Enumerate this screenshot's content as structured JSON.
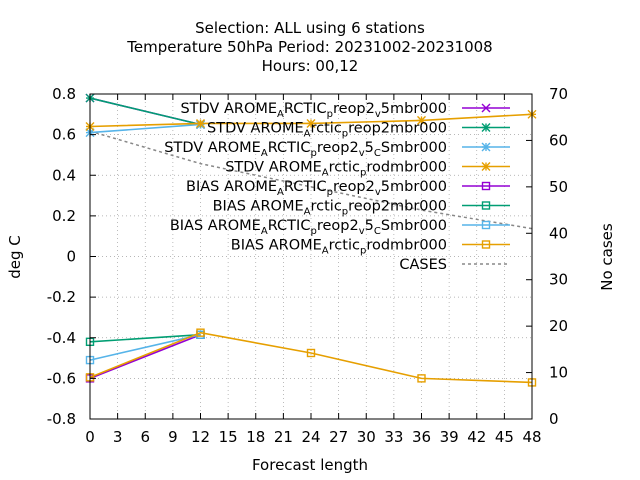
{
  "chart_data": {
    "type": "line",
    "title_lines": [
      "Selection: ALL using     6 stations",
      "Temperature 50hPa   Period: 20231002-20231008",
      "Hours:  00,12"
    ],
    "xlabel": "Forecast length",
    "ylabel": "deg C",
    "y2label": "No cases",
    "xlim": [
      0,
      48
    ],
    "ylim": [
      -0.8,
      0.8
    ],
    "y2lim": [
      0,
      70
    ],
    "xticks": [
      0,
      3,
      6,
      9,
      12,
      15,
      18,
      21,
      24,
      27,
      30,
      33,
      36,
      39,
      42,
      45,
      48
    ],
    "yticks": [
      -0.8,
      -0.6,
      -0.4,
      -0.2,
      0,
      0.2,
      0.4,
      0.6,
      0.8
    ],
    "ytick_labels": [
      "-0.8",
      "-0.6",
      "-0.4",
      "-0.2",
      "0",
      "0.2",
      "0.4",
      "0.6",
      "0.8"
    ],
    "y2ticks": [
      0,
      10,
      20,
      30,
      40,
      50,
      60,
      70
    ],
    "grid": true,
    "legend_position": "top-right",
    "series": [
      {
        "name": "STDV AROME_ARCTIC_preop2_v_5mbr000",
        "label_parts": [
          [
            "STDV AROME",
            ""
          ],
          [
            "A",
            "sub"
          ],
          [
            "RCTIC",
            ""
          ],
          [
            "p",
            "sub"
          ],
          [
            "reop2",
            ""
          ],
          [
            "v",
            "sub"
          ],
          [
            "5mbr000",
            ""
          ]
        ],
        "axis": "y1",
        "marker": "x",
        "color": "#9400d3",
        "x": [
          0,
          12
        ],
        "y": [
          0.78,
          0.65
        ]
      },
      {
        "name": "STDV AROME_Arctic_preop2mbr000",
        "label_parts": [
          [
            "STDV AROME",
            ""
          ],
          [
            "A",
            "sub"
          ],
          [
            "rctic",
            ""
          ],
          [
            "p",
            "sub"
          ],
          [
            "reop2mbr000",
            ""
          ]
        ],
        "axis": "y1",
        "marker": "star",
        "color": "#009e73",
        "x": [
          0,
          12
        ],
        "y": [
          0.78,
          0.65
        ]
      },
      {
        "name": "STDV AROME_ARCTIC_preop2_v_5_CSmbr000",
        "label_parts": [
          [
            "STDV AROME",
            ""
          ],
          [
            "A",
            "sub"
          ],
          [
            "RCTIC",
            ""
          ],
          [
            "p",
            "sub"
          ],
          [
            "reop2",
            ""
          ],
          [
            "v",
            "sub"
          ],
          [
            "5",
            ""
          ],
          [
            "C",
            "sub"
          ],
          [
            "Smbr000",
            ""
          ]
        ],
        "axis": "y1",
        "marker": "star",
        "color": "#56b4e9",
        "x": [
          0,
          12
        ],
        "y": [
          0.61,
          0.65
        ]
      },
      {
        "name": "STDV AROME_Arctic_prodmbr000",
        "label_parts": [
          [
            "STDV AROME",
            ""
          ],
          [
            "A",
            "sub"
          ],
          [
            "rctic",
            ""
          ],
          [
            "p",
            "sub"
          ],
          [
            "rodmbr000",
            ""
          ]
        ],
        "axis": "y1",
        "marker": "star",
        "color": "#e69f00",
        "x": [
          0,
          12,
          24,
          36,
          48
        ],
        "y": [
          0.64,
          0.655,
          0.655,
          0.67,
          0.7
        ]
      },
      {
        "name": "BIAS AROME_ARCTIC_preop2_v_5mbr000",
        "label_parts": [
          [
            "BIAS AROME",
            ""
          ],
          [
            "A",
            "sub"
          ],
          [
            "RCTIC",
            ""
          ],
          [
            "p",
            "sub"
          ],
          [
            "reop2",
            ""
          ],
          [
            "v",
            "sub"
          ],
          [
            "5mbr000",
            ""
          ]
        ],
        "axis": "y1",
        "marker": "square",
        "color": "#9400d3",
        "x": [
          0,
          12
        ],
        "y": [
          -0.6,
          -0.385
        ]
      },
      {
        "name": "BIAS AROME_Arctic_preop2mbr000",
        "label_parts": [
          [
            "BIAS AROME",
            ""
          ],
          [
            "A",
            "sub"
          ],
          [
            "rctic",
            ""
          ],
          [
            "p",
            "sub"
          ],
          [
            "reop2mbr000",
            ""
          ]
        ],
        "axis": "y1",
        "marker": "square",
        "color": "#009e73",
        "x": [
          0,
          12
        ],
        "y": [
          -0.42,
          -0.385
        ]
      },
      {
        "name": "BIAS AROME_ARCTIC_preop2_v_5_CSmbr000",
        "label_parts": [
          [
            "BIAS AROME",
            ""
          ],
          [
            "A",
            "sub"
          ],
          [
            "RCTIC",
            ""
          ],
          [
            "p",
            "sub"
          ],
          [
            "reop2",
            ""
          ],
          [
            "v",
            "sub"
          ],
          [
            "5",
            ""
          ],
          [
            "C",
            "sub"
          ],
          [
            "Smbr000",
            ""
          ]
        ],
        "axis": "y1",
        "marker": "square",
        "color": "#56b4e9",
        "x": [
          0,
          12
        ],
        "y": [
          -0.51,
          -0.385
        ]
      },
      {
        "name": "BIAS AROME_Arctic_prodmbr000",
        "label_parts": [
          [
            "BIAS AROME",
            ""
          ],
          [
            "A",
            "sub"
          ],
          [
            "rctic",
            ""
          ],
          [
            "p",
            "sub"
          ],
          [
            "rodmbr000",
            ""
          ]
        ],
        "axis": "y1",
        "marker": "square",
        "color": "#e69f00",
        "x": [
          0,
          12,
          24,
          36,
          48
        ],
        "y": [
          -0.595,
          -0.375,
          -0.475,
          -0.6,
          -0.62
        ]
      },
      {
        "name": "CASES",
        "label_parts": [
          [
            "CASES",
            ""
          ]
        ],
        "axis": "y2",
        "marker": "none",
        "dashed": true,
        "color": "#888888",
        "x": [
          0,
          12,
          24,
          36,
          48
        ],
        "y": [
          62,
          55,
          50,
          45,
          41
        ]
      }
    ]
  }
}
